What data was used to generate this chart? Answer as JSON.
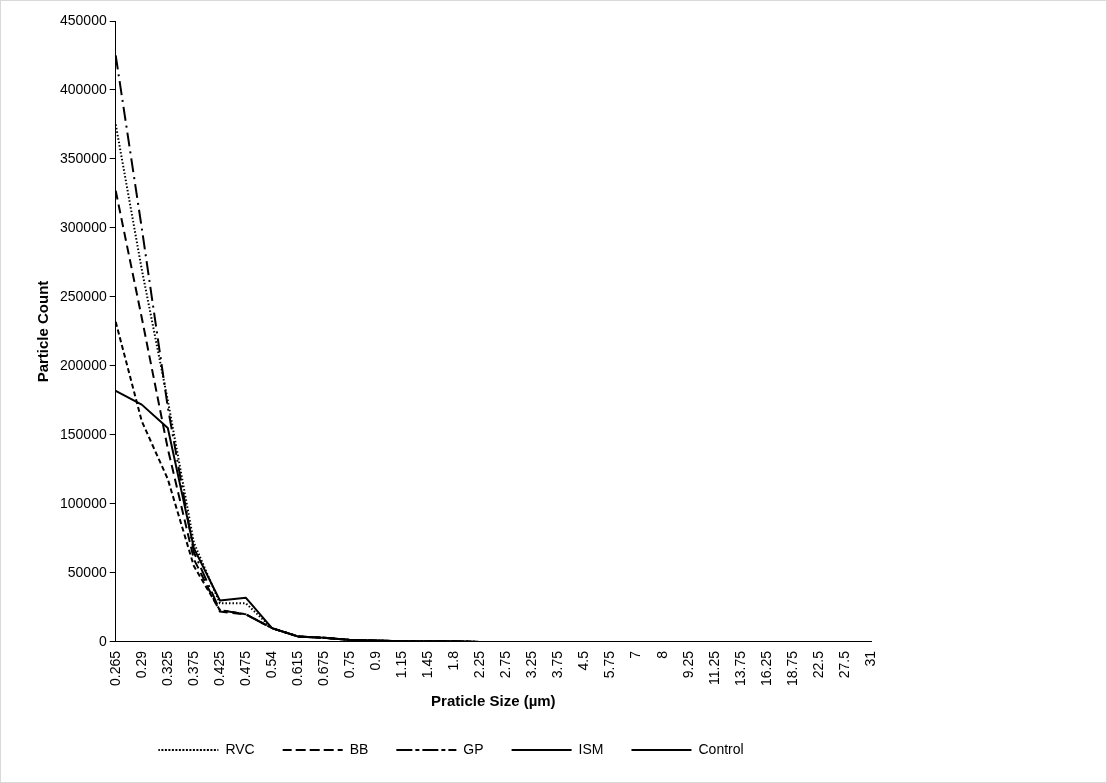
{
  "chart_data": {
    "type": "line",
    "xlabel": "Praticle Size (µm)",
    "ylabel": "Particle Count",
    "categories": [
      "0.265",
      "0.29",
      "0.325",
      "0.375",
      "0.425",
      "0.475",
      "0.54",
      "0.615",
      "0.675",
      "0.75",
      "0.9",
      "1.15",
      "1.45",
      "1.8",
      "2.25",
      "2.75",
      "3.25",
      "3.75",
      "4.5",
      "5.75",
      "7",
      "8",
      "9.25",
      "11.25",
      "13.75",
      "16.25",
      "18.75",
      "22.5",
      "27.5",
      "31"
    ],
    "series": [
      {
        "name": "RVC",
        "color": "#000000",
        "line_style": "dotted",
        "values": [
          375000,
          270000,
          175000,
          72000,
          28000,
          28000,
          10000,
          4000,
          3000,
          1500,
          1000,
          500,
          500,
          500,
          0,
          0,
          0,
          0,
          0,
          0,
          0,
          0,
          0,
          0,
          0,
          0,
          0,
          0,
          0,
          0
        ]
      },
      {
        "name": "BB",
        "color": "#000000",
        "line_style": "dashed",
        "values": [
          327000,
          235000,
          140000,
          60000,
          22000,
          20000,
          10000,
          4000,
          3000,
          1500,
          1000,
          500,
          500,
          500,
          0,
          0,
          0,
          0,
          0,
          0,
          0,
          0,
          0,
          0,
          0,
          0,
          0,
          0,
          0,
          0
        ]
      },
      {
        "name": "GP",
        "color": "#000000",
        "line_style": "dashdot",
        "values": [
          425000,
          300000,
          170000,
          65000,
          23000,
          20000,
          10000,
          4000,
          3000,
          1500,
          1000,
          500,
          500,
          500,
          0,
          0,
          0,
          0,
          0,
          0,
          0,
          0,
          0,
          0,
          0,
          0,
          0,
          0,
          0,
          0
        ]
      },
      {
        "name": "ISM",
        "color": "#000000",
        "line_style": "shortdash",
        "values": [
          232000,
          160000,
          118000,
          55000,
          23000,
          20000,
          10000,
          4000,
          3000,
          1500,
          1000,
          500,
          500,
          500,
          0,
          0,
          0,
          0,
          0,
          0,
          0,
          0,
          0,
          0,
          0,
          0,
          0,
          0,
          0,
          0
        ]
      },
      {
        "name": "Control",
        "color": "#000000",
        "line_style": "solid",
        "values": [
          182000,
          172000,
          155000,
          68000,
          30000,
          32000,
          10000,
          4000,
          3000,
          1500,
          1000,
          500,
          500,
          500,
          0,
          0,
          0,
          0,
          0,
          0,
          0,
          0,
          0,
          0,
          0,
          0,
          0,
          0,
          0,
          0
        ]
      }
    ],
    "ylim": [
      0,
      450000
    ],
    "yticks": [
      0,
      50000,
      100000,
      150000,
      200000,
      250000,
      300000,
      350000,
      400000,
      450000
    ],
    "grid": false,
    "legend": "bottom",
    "marker": "none"
  }
}
